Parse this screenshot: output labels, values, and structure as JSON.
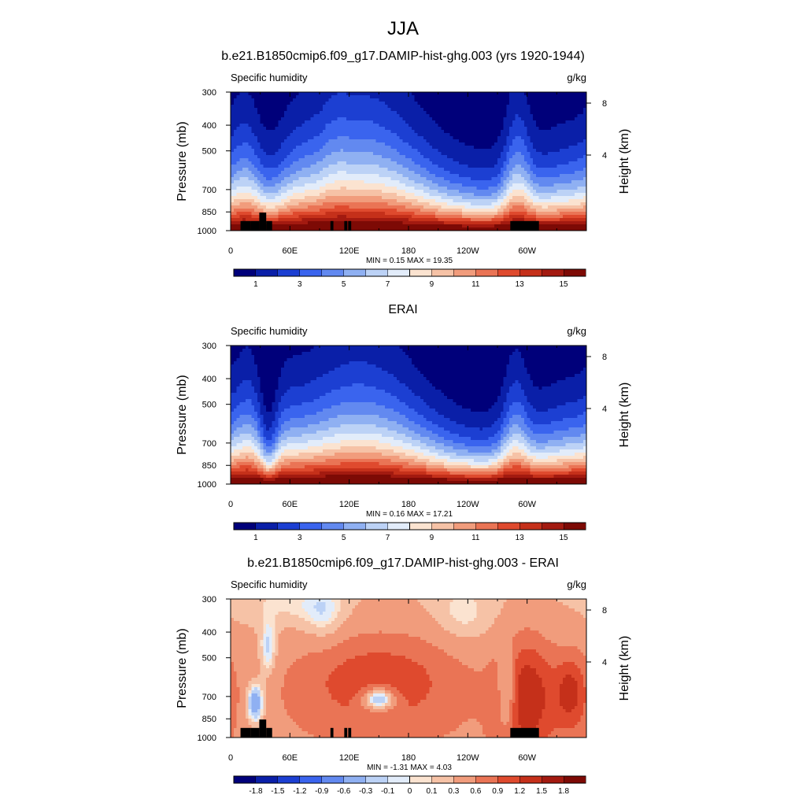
{
  "figure": {
    "main_title": "JJA"
  },
  "chart_data": [
    {
      "type": "heatmap",
      "title": "b.e21.B1850cmip6.f09_g17.DAMIP-hist-ghg.003 (yrs 1920-1944)",
      "variable": "Specific humidity",
      "units": "g/kg",
      "ylabel": "Pressure (mb)",
      "ylabel_right": "Height (km)",
      "x_ticks": [
        "0",
        "60E",
        "120E",
        "180",
        "120W",
        "60W"
      ],
      "y_ticks": [
        "300",
        "400",
        "500",
        "700",
        "850",
        "1000"
      ],
      "height_ticks": [
        "8",
        "4"
      ],
      "stats": "MIN =   0.15  MAX =  19.35",
      "min": 0.15,
      "max": 19.35,
      "colorbar_labels": [
        "1",
        "3",
        "5",
        "7",
        "9",
        "11",
        "13",
        "15"
      ],
      "field": "model_q"
    },
    {
      "type": "heatmap",
      "title": "ERAI",
      "variable": "Specific humidity",
      "units": "g/kg",
      "ylabel": "Pressure (mb)",
      "ylabel_right": "Height (km)",
      "x_ticks": [
        "0",
        "60E",
        "120E",
        "180",
        "120W",
        "60W"
      ],
      "y_ticks": [
        "300",
        "400",
        "500",
        "700",
        "850",
        "1000"
      ],
      "height_ticks": [
        "8",
        "4"
      ],
      "stats": "MIN =   0.16  MAX =  17.21",
      "min": 0.16,
      "max": 17.21,
      "colorbar_labels": [
        "1",
        "3",
        "5",
        "7",
        "9",
        "11",
        "13",
        "15"
      ],
      "field": "obs_q"
    },
    {
      "type": "heatmap",
      "title": "b.e21.B1850cmip6.f09_g17.DAMIP-hist-ghg.003 - ERAI",
      "variable": "Specific humidity",
      "units": "g/kg",
      "ylabel": "Pressure (mb)",
      "ylabel_right": "Height (km)",
      "x_ticks": [
        "0",
        "60E",
        "120E",
        "180",
        "120W",
        "60W"
      ],
      "y_ticks": [
        "300",
        "400",
        "500",
        "700",
        "850",
        "1000"
      ],
      "height_ticks": [
        "8",
        "4"
      ],
      "stats": "MIN =  -1.31  MAX =   4.03",
      "min": -1.31,
      "max": 4.03,
      "colorbar_labels": [
        "-1.8",
        "-1.5",
        "-1.2",
        "-0.9",
        "-0.6",
        "-0.3",
        "-0.1",
        "0",
        "0.1",
        "0.3",
        "0.6",
        "0.9",
        "1.2",
        "1.5",
        "1.8"
      ],
      "field": "diff_q"
    }
  ],
  "colors": {
    "absolute_levels": [
      "#00007a",
      "#0a1fa8",
      "#1c3fd2",
      "#3a64ee",
      "#6289f0",
      "#8fb0f2",
      "#bcd2f6",
      "#e2ecfa",
      "#fbe3d0",
      "#f6c2a6",
      "#f19c7c",
      "#ea7455",
      "#df4a2e",
      "#c5301a",
      "#a31a10",
      "#7d0a05"
    ],
    "diff_levels": [
      "#00007a",
      "#0a1fa8",
      "#1c3fd2",
      "#3a64ee",
      "#6289f0",
      "#8fb0f2",
      "#bcd2f6",
      "#e2ecfa",
      "#fbe3d0",
      "#f6c2a6",
      "#f19c7c",
      "#ea7455",
      "#df4a2e",
      "#c5301a",
      "#a31a10",
      "#7d0a05"
    ],
    "topography": "#000000"
  }
}
